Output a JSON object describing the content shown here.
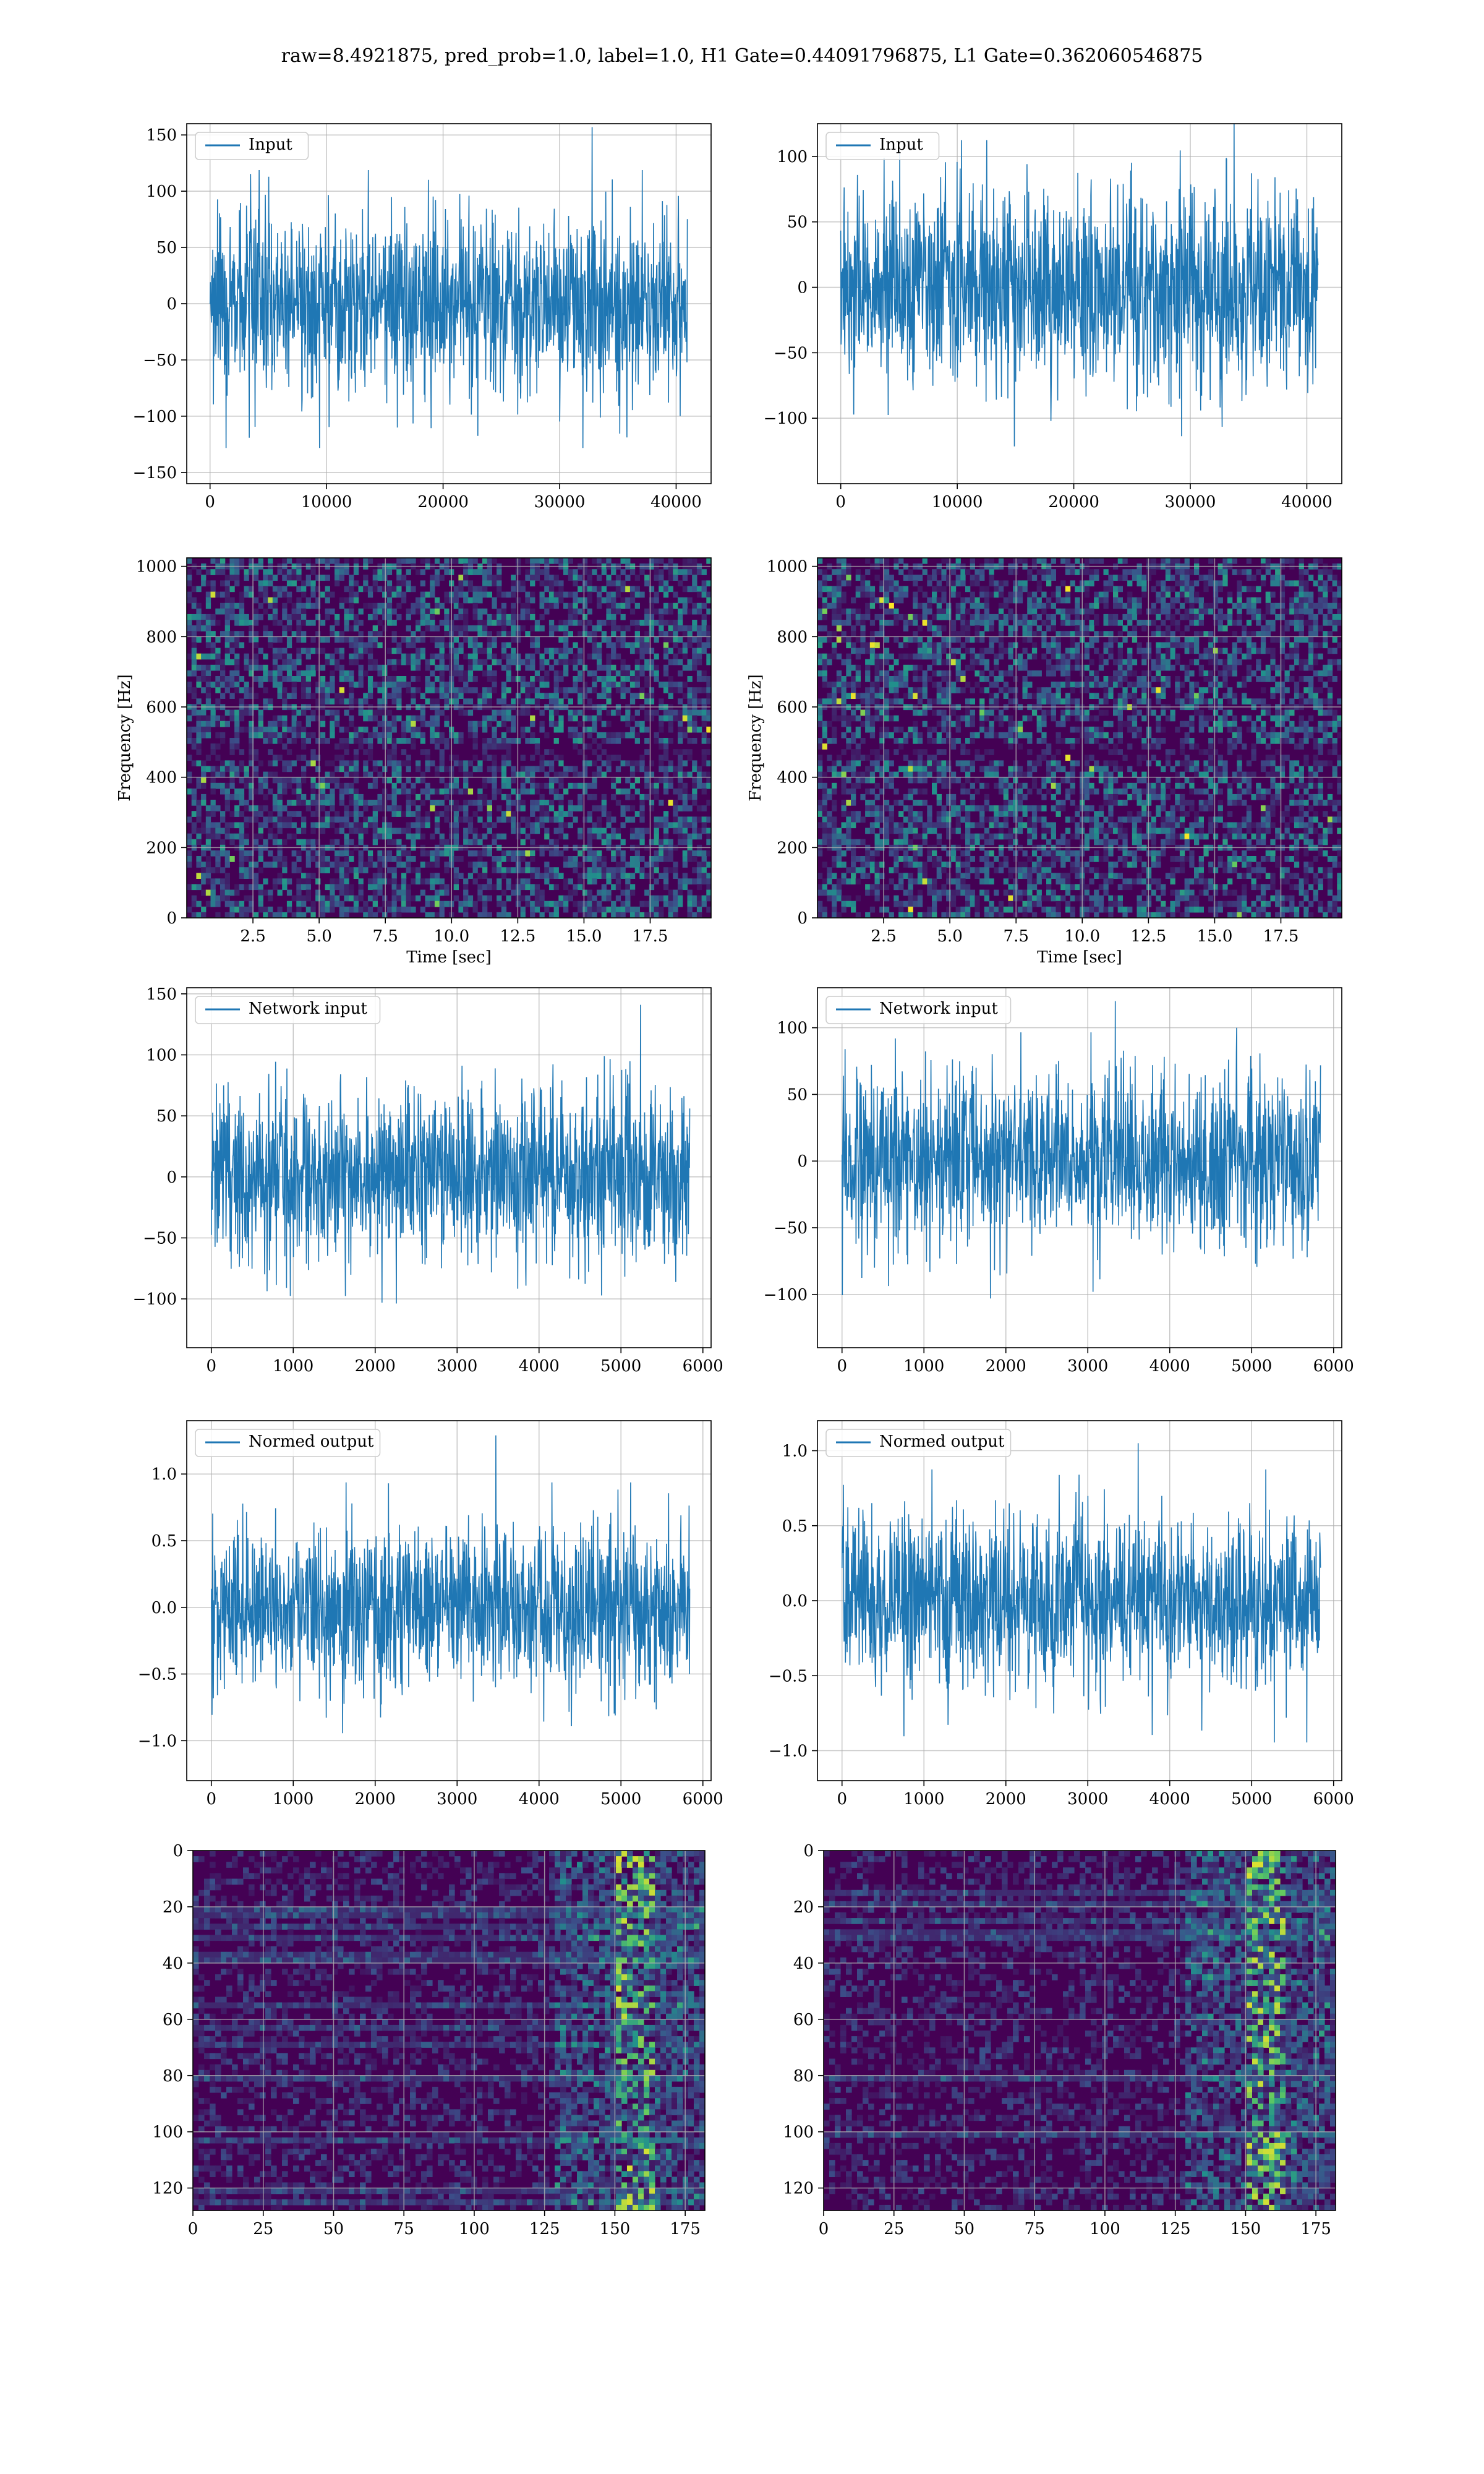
{
  "figure_title": "raw=8.4921875, pred_prob=1.0, label=1.0, H1 Gate=0.44091796875, L1 Gate=0.362060546875",
  "colors": {
    "line": "#1f77b4",
    "grid": "#b0b0b0",
    "viridis_low": "#440154",
    "viridis_high": "#fde725"
  },
  "chart_data": [
    {
      "id": "r1c1",
      "type": "line",
      "legend": "Input",
      "legend_loc": "upper-left",
      "xlim": [
        -2000,
        43000
      ],
      "ylim": [
        -160,
        160
      ],
      "xticks": [
        0,
        10000,
        20000,
        30000,
        40000
      ],
      "xticklabels": [
        "0",
        "10000",
        "20000",
        "30000",
        "40000"
      ],
      "yticks": [
        -150,
        -100,
        -50,
        0,
        50,
        100,
        150
      ],
      "yticklabels": [
        "−150",
        "−100",
        "−50",
        "0",
        "50",
        "100",
        "150"
      ],
      "grid": true,
      "signal": {
        "n": 40960,
        "amplitude": 95,
        "peak": 157
      }
    },
    {
      "id": "r1c2",
      "type": "line",
      "legend": "Input",
      "legend_loc": "upper-left",
      "xlim": [
        -2000,
        43000
      ],
      "ylim": [
        -150,
        125
      ],
      "xticks": [
        0,
        10000,
        20000,
        30000,
        40000
      ],
      "xticklabels": [
        "0",
        "10000",
        "20000",
        "30000",
        "40000"
      ],
      "yticks": [
        -100,
        -50,
        0,
        50,
        100
      ],
      "yticklabels": [
        "−100",
        "−50",
        "0",
        "50",
        "100"
      ],
      "grid": true,
      "signal": {
        "n": 40960,
        "amplitude": 90,
        "peak": 134
      }
    },
    {
      "id": "r2c1",
      "type": "heatmap",
      "xlabel": "Time [sec]",
      "ylabel": "Frequency [Hz]",
      "xlim": [
        0,
        19.8
      ],
      "ylim": [
        0,
        1024
      ],
      "xticks": [
        2.5,
        5.0,
        7.5,
        10.0,
        12.5,
        15.0,
        17.5
      ],
      "xticklabels": [
        "2.5",
        "5.0",
        "7.5",
        "10.0",
        "12.5",
        "15.0",
        "17.5"
      ],
      "yticks": [
        0,
        200,
        400,
        600,
        800,
        1000
      ],
      "yticklabels": [
        "0",
        "200",
        "400",
        "600",
        "800",
        "1000"
      ],
      "grid": true,
      "colormap": "viridis"
    },
    {
      "id": "r2c2",
      "type": "heatmap",
      "xlabel": "Time [sec]",
      "ylabel": "Frequency [Hz]",
      "xlim": [
        0,
        19.8
      ],
      "ylim": [
        0,
        1024
      ],
      "xticks": [
        2.5,
        5.0,
        7.5,
        10.0,
        12.5,
        15.0,
        17.5
      ],
      "xticklabels": [
        "2.5",
        "5.0",
        "7.5",
        "10.0",
        "12.5",
        "15.0",
        "17.5"
      ],
      "yticks": [
        0,
        200,
        400,
        600,
        800,
        1000
      ],
      "yticklabels": [
        "0",
        "200",
        "400",
        "600",
        "800",
        "1000"
      ],
      "grid": true,
      "colormap": "viridis"
    },
    {
      "id": "r3c1",
      "type": "line",
      "legend": "Network input",
      "legend_loc": "upper-left",
      "xlim": [
        -300,
        6100
      ],
      "ylim": [
        -140,
        155
      ],
      "xticks": [
        0,
        1000,
        2000,
        3000,
        4000,
        5000,
        6000
      ],
      "xticklabels": [
        "0",
        "1000",
        "2000",
        "3000",
        "4000",
        "5000",
        "6000"
      ],
      "yticks": [
        -100,
        -50,
        0,
        50,
        100,
        150
      ],
      "yticklabels": [
        "−100",
        "−50",
        "0",
        "50",
        "100",
        "150"
      ],
      "grid": true,
      "signal": {
        "n": 5840,
        "amplitude": 85,
        "peak": 141
      }
    },
    {
      "id": "r3c2",
      "type": "line",
      "legend": "Network input",
      "legend_loc": "upper-left",
      "xlim": [
        -300,
        6100
      ],
      "ylim": [
        -140,
        130
      ],
      "xticks": [
        0,
        1000,
        2000,
        3000,
        4000,
        5000,
        6000
      ],
      "xticklabels": [
        "0",
        "1000",
        "2000",
        "3000",
        "4000",
        "5000",
        "6000"
      ],
      "yticks": [
        -100,
        -50,
        0,
        50,
        100
      ],
      "yticklabels": [
        "−100",
        "−50",
        "0",
        "50",
        "100"
      ],
      "grid": true,
      "signal": {
        "n": 5840,
        "amplitude": 80,
        "peak": 120
      }
    },
    {
      "id": "r4c1",
      "type": "line",
      "legend": "Normed output",
      "legend_loc": "upper-left",
      "xlim": [
        -300,
        6100
      ],
      "ylim": [
        -1.3,
        1.4
      ],
      "xticks": [
        0,
        1000,
        2000,
        3000,
        4000,
        5000,
        6000
      ],
      "xticklabels": [
        "0",
        "1000",
        "2000",
        "3000",
        "4000",
        "5000",
        "6000"
      ],
      "yticks": [
        -1.0,
        -0.5,
        0.0,
        0.5,
        1.0
      ],
      "yticklabels": [
        "−1.0",
        "−0.5",
        "0.0",
        "0.5",
        "1.0"
      ],
      "grid": true,
      "signal": {
        "n": 5840,
        "amplitude": 0.75,
        "peak": 1.29
      }
    },
    {
      "id": "r4c2",
      "type": "line",
      "legend": "Normed output",
      "legend_loc": "upper-left",
      "xlim": [
        -300,
        6100
      ],
      "ylim": [
        -1.2,
        1.2
      ],
      "xticks": [
        0,
        1000,
        2000,
        3000,
        4000,
        5000,
        6000
      ],
      "xticklabels": [
        "0",
        "1000",
        "2000",
        "3000",
        "4000",
        "5000",
        "6000"
      ],
      "yticks": [
        -1.0,
        -0.5,
        0.0,
        0.5,
        1.0
      ],
      "yticklabels": [
        "−1.0",
        "−0.5",
        "0.0",
        "0.5",
        "1.0"
      ],
      "grid": true,
      "signal": {
        "n": 5840,
        "amplitude": 0.7,
        "peak": 1.05
      }
    },
    {
      "id": "r5c1",
      "type": "heatmap",
      "xlim": [
        0,
        182
      ],
      "ylim": [
        128,
        0
      ],
      "xticks": [
        0,
        25,
        50,
        75,
        100,
        125,
        150,
        175
      ],
      "xticklabels": [
        "0",
        "25",
        "50",
        "75",
        "100",
        "125",
        "150",
        "175"
      ],
      "yticks": [
        0,
        20,
        40,
        60,
        80,
        100,
        120
      ],
      "yticklabels": [
        "0",
        "20",
        "40",
        "60",
        "80",
        "100",
        "120"
      ],
      "grid": true,
      "colormap": "viridis"
    },
    {
      "id": "r5c2",
      "type": "heatmap",
      "xlim": [
        0,
        182
      ],
      "ylim": [
        128,
        0
      ],
      "xticks": [
        0,
        25,
        50,
        75,
        100,
        125,
        150,
        175
      ],
      "xticklabels": [
        "0",
        "25",
        "50",
        "75",
        "100",
        "125",
        "150",
        "175"
      ],
      "yticks": [
        0,
        20,
        40,
        60,
        80,
        100,
        120
      ],
      "yticklabels": [
        "0",
        "20",
        "40",
        "60",
        "80",
        "100",
        "120"
      ],
      "grid": true,
      "colormap": "viridis"
    }
  ]
}
